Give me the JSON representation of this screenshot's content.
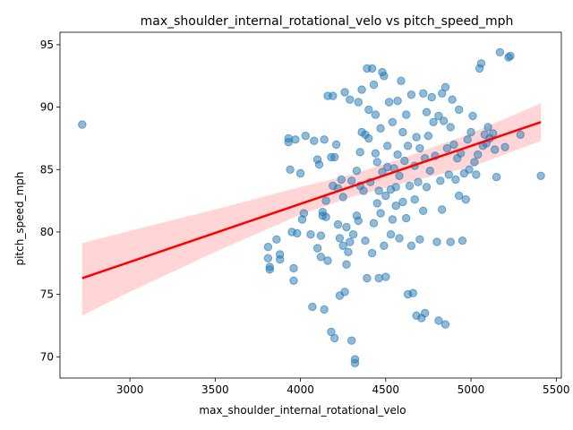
{
  "chart_data": {
    "type": "scatter",
    "title": "max_shoulder_internal_rotational_velo vs pitch_speed_mph",
    "xlabel": "max_shoulder_internal_rotational_velo",
    "ylabel": "pitch_speed_mph",
    "xlim": [
      2590,
      5530
    ],
    "ylim": [
      68.3,
      96.0
    ],
    "xticks": [
      3000,
      3500,
      4000,
      4500,
      5000,
      5500
    ],
    "yticks": [
      70,
      75,
      80,
      85,
      90,
      95
    ],
    "grid": false,
    "legend": "none",
    "colors": {
      "points": "#1f77b4",
      "fit": "#ff0000",
      "band": "#ffb3b3"
    },
    "regression": {
      "x": [
        2720,
        5410
      ],
      "y": [
        76.3,
        88.8
      ]
    },
    "confidence_band": {
      "x": [
        2720,
        3000,
        3500,
        4000,
        4300,
        4600,
        5000,
        5410
      ],
      "upper": [
        79.1,
        80.1,
        81.8,
        83.6,
        84.6,
        85.9,
        87.9,
        90.3
      ],
      "lower": [
        73.3,
        75.2,
        78.4,
        81.4,
        82.8,
        83.9,
        85.2,
        87.3
      ]
    },
    "points": [
      [
        2720,
        88.6
      ],
      [
        3810,
        78.8
      ],
      [
        3820,
        77.2
      ],
      [
        3810,
        77.9
      ],
      [
        3820,
        77.0
      ],
      [
        3860,
        79.4
      ],
      [
        3880,
        78.2
      ],
      [
        3880,
        77.8
      ],
      [
        3930,
        87.2
      ],
      [
        3930,
        87.5
      ],
      [
        3940,
        85.0
      ],
      [
        3950,
        80.0
      ],
      [
        3960,
        76.1
      ],
      [
        3960,
        77.1
      ],
      [
        3970,
        87.4
      ],
      [
        3980,
        79.9
      ],
      [
        4000,
        84.7
      ],
      [
        4010,
        81.0
      ],
      [
        4020,
        81.5
      ],
      [
        4030,
        87.7
      ],
      [
        4060,
        79.8
      ],
      [
        4070,
        74.0
      ],
      [
        4080,
        87.3
      ],
      [
        4100,
        78.7
      ],
      [
        4100,
        85.8
      ],
      [
        4110,
        85.4
      ],
      [
        4120,
        79.7
      ],
      [
        4120,
        78.0
      ],
      [
        4130,
        81.6
      ],
      [
        4130,
        81.3
      ],
      [
        4140,
        87.4
      ],
      [
        4140,
        73.8
      ],
      [
        4150,
        81.2
      ],
      [
        4150,
        82.5
      ],
      [
        4160,
        90.9
      ],
      [
        4160,
        77.7
      ],
      [
        4180,
        86.0
      ],
      [
        4180,
        72.0
      ],
      [
        4190,
        90.9
      ],
      [
        4190,
        83.7
      ],
      [
        4200,
        71.5
      ],
      [
        4200,
        86.0
      ],
      [
        4210,
        87.0
      ],
      [
        4220,
        83.5
      ],
      [
        4220,
        80.6
      ],
      [
        4230,
        79.5
      ],
      [
        4230,
        74.9
      ],
      [
        4240,
        84.2
      ],
      [
        4250,
        78.9
      ],
      [
        4250,
        82.8
      ],
      [
        4260,
        91.2
      ],
      [
        4260,
        75.2
      ],
      [
        4270,
        77.4
      ],
      [
        4270,
        80.4
      ],
      [
        4280,
        78.4
      ],
      [
        4290,
        90.6
      ],
      [
        4290,
        79.2
      ],
      [
        4300,
        71.3
      ],
      [
        4300,
        84.1
      ],
      [
        4310,
        79.8
      ],
      [
        4320,
        69.8
      ],
      [
        4320,
        69.5
      ],
      [
        4330,
        81.3
      ],
      [
        4330,
        84.9
      ],
      [
        4340,
        90.4
      ],
      [
        4340,
        80.9
      ],
      [
        4350,
        83.7
      ],
      [
        4350,
        86.4
      ],
      [
        4360,
        91.4
      ],
      [
        4360,
        88.0
      ],
      [
        4370,
        83.3
      ],
      [
        4380,
        87.8
      ],
      [
        4380,
        79.3
      ],
      [
        4390,
        93.1
      ],
      [
        4390,
        76.3
      ],
      [
        4400,
        89.8
      ],
      [
        4400,
        87.5
      ],
      [
        4410,
        84.0
      ],
      [
        4420,
        93.1
      ],
      [
        4420,
        78.3
      ],
      [
        4430,
        91.8
      ],
      [
        4430,
        80.7
      ],
      [
        4440,
        89.4
      ],
      [
        4440,
        86.3
      ],
      [
        4450,
        82.3
      ],
      [
        4450,
        85.6
      ],
      [
        4460,
        76.3
      ],
      [
        4460,
        83.3
      ],
      [
        4470,
        88.3
      ],
      [
        4470,
        81.5
      ],
      [
        4480,
        92.8
      ],
      [
        4480,
        84.8
      ],
      [
        4490,
        92.5
      ],
      [
        4490,
        78.9
      ],
      [
        4500,
        82.9
      ],
      [
        4500,
        76.4
      ],
      [
        4510,
        86.9
      ],
      [
        4510,
        85.2
      ],
      [
        4520,
        90.4
      ],
      [
        4530,
        83.4
      ],
      [
        4530,
        79.8
      ],
      [
        4540,
        88.8
      ],
      [
        4540,
        81.0
      ],
      [
        4550,
        85.1
      ],
      [
        4560,
        83.6
      ],
      [
        4560,
        82.1
      ],
      [
        4570,
        86.2
      ],
      [
        4570,
        90.5
      ],
      [
        4580,
        84.5
      ],
      [
        4580,
        79.5
      ],
      [
        4590,
        92.1
      ],
      [
        4600,
        88.0
      ],
      [
        4600,
        82.4
      ],
      [
        4610,
        85.7
      ],
      [
        4620,
        89.4
      ],
      [
        4620,
        81.1
      ],
      [
        4630,
        75.0
      ],
      [
        4630,
        86.9
      ],
      [
        4640,
        83.7
      ],
      [
        4650,
        91.0
      ],
      [
        4650,
        78.9
      ],
      [
        4660,
        75.1
      ],
      [
        4670,
        85.3
      ],
      [
        4670,
        82.6
      ],
      [
        4680,
        73.3
      ],
      [
        4680,
        87.6
      ],
      [
        4690,
        84.0
      ],
      [
        4700,
        79.4
      ],
      [
        4700,
        86.7
      ],
      [
        4710,
        73.1
      ],
      [
        4720,
        91.1
      ],
      [
        4720,
        81.7
      ],
      [
        4730,
        73.5
      ],
      [
        4730,
        85.9
      ],
      [
        4740,
        89.6
      ],
      [
        4740,
        83.6
      ],
      [
        4750,
        87.7
      ],
      [
        4760,
        84.9
      ],
      [
        4770,
        90.8
      ],
      [
        4780,
        88.8
      ],
      [
        4790,
        86.1
      ],
      [
        4800,
        79.2
      ],
      [
        4810,
        72.9
      ],
      [
        4810,
        89.3
      ],
      [
        4820,
        84.1
      ],
      [
        4830,
        91.1
      ],
      [
        4830,
        81.8
      ],
      [
        4840,
        88.9
      ],
      [
        4850,
        72.6
      ],
      [
        4850,
        91.6
      ],
      [
        4860,
        86.7
      ],
      [
        4870,
        84.6
      ],
      [
        4880,
        79.2
      ],
      [
        4880,
        88.4
      ],
      [
        4890,
        90.6
      ],
      [
        4900,
        87.0
      ],
      [
        4910,
        84.2
      ],
      [
        4920,
        85.9
      ],
      [
        4930,
        82.9
      ],
      [
        4930,
        89.8
      ],
      [
        4940,
        86.3
      ],
      [
        4950,
        79.3
      ],
      [
        4960,
        84.7
      ],
      [
        4970,
        82.6
      ],
      [
        4980,
        87.4
      ],
      [
        4990,
        85.0
      ],
      [
        5000,
        88.0
      ],
      [
        5010,
        89.3
      ],
      [
        5020,
        85.6
      ],
      [
        5030,
        84.6
      ],
      [
        5040,
        86.2
      ],
      [
        5050,
        93.1
      ],
      [
        5060,
        93.5
      ],
      [
        5070,
        86.9
      ],
      [
        5080,
        87.8
      ],
      [
        5090,
        87.1
      ],
      [
        5100,
        88.4
      ],
      [
        5110,
        87.5
      ],
      [
        5130,
        87.9
      ],
      [
        5140,
        86.6
      ],
      [
        5150,
        84.4
      ],
      [
        5170,
        94.4
      ],
      [
        5200,
        86.8
      ],
      [
        5220,
        94.0
      ],
      [
        5230,
        94.1
      ],
      [
        5290,
        87.8
      ],
      [
        5410,
        84.5
      ]
    ]
  }
}
